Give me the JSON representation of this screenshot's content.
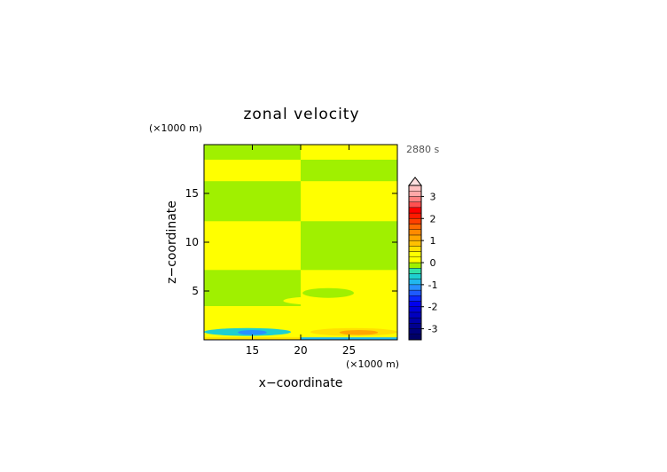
{
  "chart_data": {
    "type": "heatmap",
    "title": "zonal velocity",
    "time_label": "2880 s",
    "xlabel": "x−coordinate",
    "ylabel": "z−coordinate",
    "x_unit": "(×1000 m)",
    "y_unit": "(×1000 m)",
    "xlim": [
      10,
      30
    ],
    "ylim": [
      0,
      20
    ],
    "x_ticks": [
      15,
      20,
      25
    ],
    "y_ticks": [
      5,
      10,
      15
    ],
    "colorbar": {
      "levels": [
        -3.5,
        -3.25,
        -3.0,
        -2.75,
        -2.5,
        -2.25,
        -2.0,
        -1.75,
        -1.5,
        -1.25,
        -1.0,
        -0.75,
        -0.5,
        -0.25,
        0.0,
        0.25,
        0.5,
        0.75,
        1.0,
        1.25,
        1.5,
        1.75,
        2.0,
        2.25,
        2.5,
        2.75,
        3.0,
        3.25,
        3.5
      ],
      "colors": [
        "#000066",
        "#00007a",
        "#000090",
        "#0000a8",
        "#0000c0",
        "#0000d8",
        "#0000ee",
        "#0a28ff",
        "#1e5aff",
        "#2890ff",
        "#20b8ee",
        "#1ecfcf",
        "#30e0a8",
        "#a0f000",
        "#ffff00",
        "#ffff00",
        "#ffe000",
        "#ffc000",
        "#ffa500",
        "#ff8a00",
        "#ff6a00",
        "#ff4000",
        "#ff1a00",
        "#ff0000",
        "#ff5050",
        "#ff8080",
        "#ffa8a8",
        "#ffc0c0"
      ],
      "tick_labels": [
        "-3",
        "-2",
        "-1",
        "0",
        "1",
        "2",
        "3"
      ],
      "tick_values": [
        -3,
        -2,
        -1,
        0,
        1,
        2,
        3
      ]
    },
    "field": [
      {
        "x": [
          10,
          20
        ],
        "z": [
          0,
          0.3
        ],
        "value": 0.6
      },
      {
        "x": [
          20,
          30
        ],
        "z": [
          0,
          0.3
        ],
        "value": -0.8
      },
      {
        "x": [
          10,
          20
        ],
        "z": [
          0.3,
          1.5
        ],
        "value": 0.1
      },
      {
        "x": [
          20,
          30
        ],
        "z": [
          0.3,
          1.5
        ],
        "value": 0.1
      },
      {
        "x": [
          10,
          20
        ],
        "z": [
          1.5,
          3.5
        ],
        "value": 0.1
      },
      {
        "x": [
          20,
          30
        ],
        "z": [
          1.5,
          3.5
        ],
        "value": 0.1
      },
      {
        "x": [
          10,
          20
        ],
        "z": [
          3.5,
          7.2
        ],
        "value": -0.1
      },
      {
        "x": [
          20,
          30
        ],
        "z": [
          3.5,
          7.2
        ],
        "value": 0.1
      },
      {
        "x": [
          10,
          20
        ],
        "z": [
          7.2,
          12.2
        ],
        "value": 0.1
      },
      {
        "x": [
          20,
          30
        ],
        "z": [
          7.2,
          12.2
        ],
        "value": -0.1
      },
      {
        "x": [
          10,
          20
        ],
        "z": [
          12.2,
          16.3
        ],
        "value": -0.1
      },
      {
        "x": [
          20,
          30
        ],
        "z": [
          12.2,
          16.3
        ],
        "value": 0.1
      },
      {
        "x": [
          10,
          20
        ],
        "z": [
          16.3,
          18.5
        ],
        "value": 0.1
      },
      {
        "x": [
          20,
          30
        ],
        "z": [
          16.3,
          18.5
        ],
        "value": -0.1
      },
      {
        "x": [
          10,
          20
        ],
        "z": [
          18.5,
          20
        ],
        "value": -0.1
      },
      {
        "x": [
          20,
          30
        ],
        "z": [
          18.5,
          20
        ],
        "value": 0.1
      }
    ],
    "features": [
      {
        "x": [
          18.2,
          24.3
        ],
        "z": [
          3.6,
          4.4
        ],
        "value": 0.1
      },
      {
        "x": [
          20.2,
          25.5
        ],
        "z": [
          4.3,
          5.3
        ],
        "value": -0.1
      },
      {
        "x": [
          10,
          19
        ],
        "z": [
          0.4,
          1.2
        ],
        "value": -0.6
      },
      {
        "x": [
          13.5,
          16.5
        ],
        "z": [
          0.5,
          1.0
        ],
        "value": -1.2
      },
      {
        "x": [
          21,
          30
        ],
        "z": [
          0.4,
          1.2
        ],
        "value": 0.7
      },
      {
        "x": [
          24,
          28
        ],
        "z": [
          0.5,
          1.0
        ],
        "value": 1.0
      }
    ]
  }
}
